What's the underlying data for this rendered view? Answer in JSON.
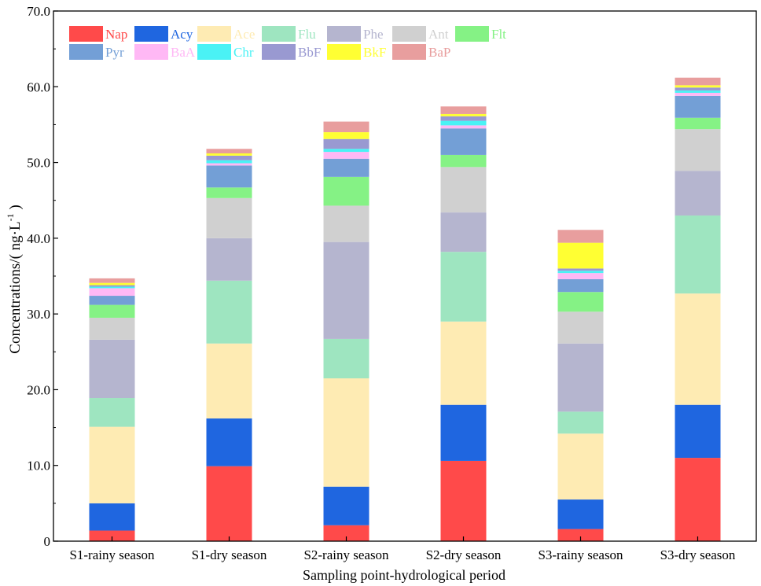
{
  "chart_data": {
    "type": "bar",
    "stacked": true,
    "xlabel": "Sampling point-hydrological period",
    "ylabel": "Concentrations/( ng·L",
    "ylabel_sup": "-1",
    "ylabel_end": " )",
    "ylim": [
      0,
      70
    ],
    "yticks": [
      0,
      10,
      20,
      30,
      40,
      50,
      60,
      70
    ],
    "ytick_labels": [
      "0",
      "10.0",
      "20.0",
      "30.0",
      "40.0",
      "50.0",
      "60.0",
      "70.0"
    ],
    "grid": false,
    "legend_position": "top-left",
    "categories": [
      "S1-rainy season",
      "S1-dry season",
      "S2-rainy season",
      "S2-dry season",
      "S3-rainy season",
      "S3-dry season"
    ],
    "series": [
      {
        "name": "Nap",
        "color": "#ff4a4a",
        "values": [
          1.4,
          9.9,
          2.1,
          10.6,
          1.6,
          11.0
        ]
      },
      {
        "name": "Acy",
        "color": "#1f66e0",
        "values": [
          3.6,
          6.3,
          5.1,
          7.4,
          3.9,
          7.0
        ]
      },
      {
        "name": "Ace",
        "color": "#feebb3",
        "values": [
          10.1,
          9.9,
          14.3,
          11.0,
          8.7,
          14.7
        ]
      },
      {
        "name": "Flu",
        "color": "#9ee5c0",
        "values": [
          3.8,
          8.3,
          5.2,
          9.2,
          2.9,
          10.3
        ]
      },
      {
        "name": "Phe",
        "color": "#b5b5cf",
        "values": [
          7.7,
          5.6,
          12.8,
          5.2,
          9.0,
          5.9
        ]
      },
      {
        "name": "Ant",
        "color": "#d0d0d0",
        "values": [
          2.9,
          5.3,
          4.8,
          6.0,
          4.2,
          5.5
        ]
      },
      {
        "name": "Flt",
        "color": "#85f285",
        "values": [
          1.7,
          1.4,
          3.8,
          1.6,
          2.6,
          1.5
        ]
      },
      {
        "name": "Pyr",
        "color": "#739fd6",
        "values": [
          1.2,
          2.9,
          2.4,
          3.5,
          1.7,
          2.9
        ]
      },
      {
        "name": "BaA",
        "color": "#ffb8f5",
        "values": [
          1.0,
          0.3,
          0.9,
          0.4,
          0.8,
          0.4
        ]
      },
      {
        "name": "Chr",
        "color": "#4af2f5",
        "values": [
          0.2,
          0.4,
          0.4,
          0.6,
          0.3,
          0.3
        ]
      },
      {
        "name": "BbF",
        "color": "#9999d1",
        "values": [
          0.2,
          0.6,
          1.3,
          0.6,
          0.3,
          0.4
        ]
      },
      {
        "name": "BkF",
        "color": "#ffff33",
        "values": [
          0.3,
          0.3,
          0.9,
          0.3,
          3.4,
          0.3
        ]
      },
      {
        "name": "BaP",
        "color": "#e89e9e",
        "values": [
          0.6,
          0.6,
          1.4,
          1.0,
          1.7,
          1.0
        ]
      }
    ]
  }
}
